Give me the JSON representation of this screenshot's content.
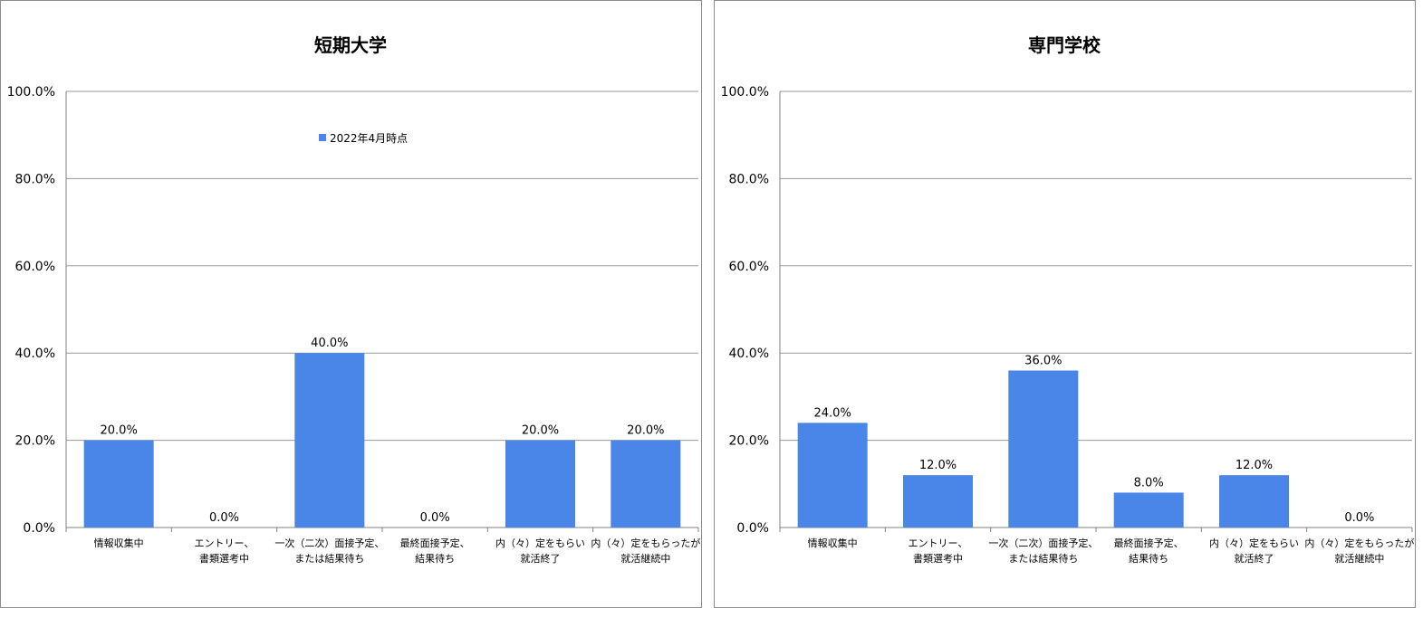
{
  "legend": {
    "label": "2022年4月時点",
    "color": "#4a86e8"
  },
  "chart_data": [
    {
      "type": "bar",
      "title": "短期大学",
      "categories": [
        [
          "情報収集中"
        ],
        [
          "エントリー、",
          "書類選考中"
        ],
        [
          "一次（二次）面接予定、",
          "または結果待ち"
        ],
        [
          "最終面接予定、",
          "結果待ち"
        ],
        [
          "内（々）定をもらい",
          "就活終了"
        ],
        [
          "内（々）定をもらったが",
          "就活継続中"
        ]
      ],
      "series": [
        {
          "name": "2022年4月時点",
          "color": "#4a86e8",
          "values": [
            20.0,
            0.0,
            40.0,
            0.0,
            20.0,
            20.0
          ]
        }
      ],
      "data_labels": [
        "20.0%",
        "0.0%",
        "40.0%",
        "0.0%",
        "20.0%",
        "20.0%"
      ],
      "yticks": [
        "0.0%",
        "20.0%",
        "40.0%",
        "60.0%",
        "80.0%",
        "100.0%"
      ],
      "ylim": [
        0,
        100
      ],
      "grid": true,
      "legend_placement": "inside-top-center"
    },
    {
      "type": "bar",
      "title": "専門学校",
      "categories": [
        [
          "情報収集中"
        ],
        [
          "エントリー、",
          "書類選考中"
        ],
        [
          "一次（二次）面接予定、",
          "または結果待ち"
        ],
        [
          "最終面接予定、",
          "結果待ち"
        ],
        [
          "内（々）定をもらい",
          "就活終了"
        ],
        [
          "内（々）定をもらったが",
          "就活継続中"
        ]
      ],
      "series": [
        {
          "name": "2022年4月時点",
          "color": "#4a86e8",
          "values": [
            24.0,
            12.0,
            36.0,
            8.0,
            12.0,
            0.0
          ]
        }
      ],
      "data_labels": [
        "24.0%",
        "12.0%",
        "36.0%",
        "8.0%",
        "12.0%",
        "0.0%"
      ],
      "yticks": [
        "0.0%",
        "20.0%",
        "40.0%",
        "60.0%",
        "80.0%",
        "100.0%"
      ],
      "ylim": [
        0,
        100
      ],
      "grid": true
    }
  ]
}
